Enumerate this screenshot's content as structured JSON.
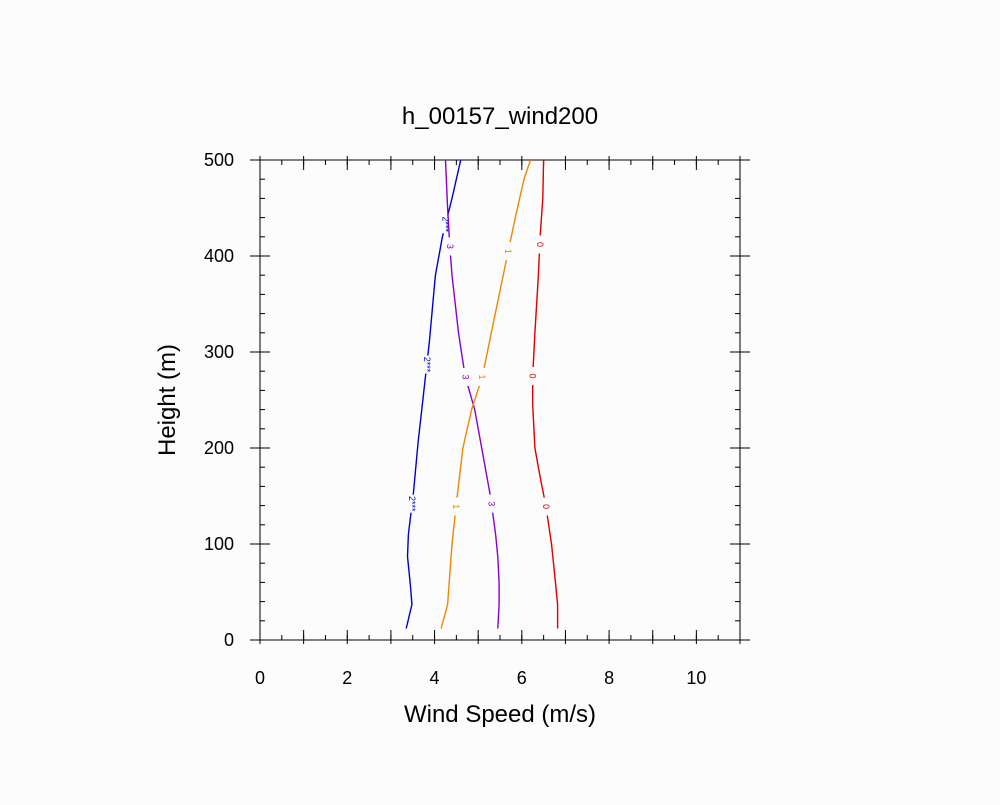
{
  "chart_data": {
    "type": "line",
    "title": "h_00157_wind200",
    "xlabel": "Wind Speed (m/s)",
    "ylabel": "Height (m)",
    "xlim": [
      0,
      11
    ],
    "ylim": [
      0,
      500
    ],
    "xticks": [
      0,
      2,
      4,
      6,
      8,
      10
    ],
    "yticks": [
      0,
      100,
      200,
      300,
      400,
      500
    ],
    "x_minor_step": 0.5,
    "y_minor_step": 20,
    "grid": false,
    "legend": "none",
    "series": [
      {
        "color": "#0000cc",
        "line_label": "2***",
        "label_at": [
          142,
          287,
          433
        ],
        "points": [
          [
            3.35,
            12
          ],
          [
            3.48,
            37
          ],
          [
            3.45,
            56
          ],
          [
            3.38,
            87
          ],
          [
            3.4,
            110
          ],
          [
            3.52,
            155
          ],
          [
            3.62,
            205
          ],
          [
            3.72,
            245
          ],
          [
            3.88,
            310
          ],
          [
            4.02,
            380
          ],
          [
            4.18,
            420
          ],
          [
            4.4,
            460
          ],
          [
            4.6,
            500
          ]
        ]
      },
      {
        "color": "#8800cc",
        "line_label": "3",
        "label_at": [
          142,
          274,
          410
        ],
        "points": [
          [
            5.45,
            12
          ],
          [
            5.48,
            37
          ],
          [
            5.48,
            60
          ],
          [
            5.45,
            87
          ],
          [
            5.4,
            110
          ],
          [
            5.28,
            150
          ],
          [
            5.08,
            200
          ],
          [
            4.92,
            240
          ],
          [
            4.7,
            275
          ],
          [
            4.55,
            320
          ],
          [
            4.4,
            380
          ],
          [
            4.35,
            410
          ],
          [
            4.3,
            450
          ],
          [
            4.25,
            500
          ]
        ]
      },
      {
        "color": "#ee8800",
        "line_label": "1",
        "label_at": [
          139,
          274,
          405
        ],
        "points": [
          [
            4.15,
            12
          ],
          [
            4.3,
            37
          ],
          [
            4.4,
            100
          ],
          [
            4.52,
            150
          ],
          [
            4.65,
            200
          ],
          [
            4.85,
            240
          ],
          [
            5.1,
            275
          ],
          [
            5.3,
            320
          ],
          [
            5.62,
            390
          ],
          [
            5.85,
            440
          ],
          [
            6.05,
            480
          ],
          [
            6.2,
            500
          ]
        ]
      },
      {
        "color": "#dd0000",
        "line_label": "0",
        "label_at": [
          139,
          275,
          412
        ],
        "points": [
          [
            6.82,
            12
          ],
          [
            6.82,
            37
          ],
          [
            6.75,
            70
          ],
          [
            6.68,
            100
          ],
          [
            6.55,
            140
          ],
          [
            6.42,
            170
          ],
          [
            6.3,
            200
          ],
          [
            6.25,
            245
          ],
          [
            6.25,
            275
          ],
          [
            6.3,
            320
          ],
          [
            6.38,
            380
          ],
          [
            6.42,
            420
          ],
          [
            6.48,
            460
          ],
          [
            6.5,
            500
          ]
        ]
      }
    ]
  }
}
